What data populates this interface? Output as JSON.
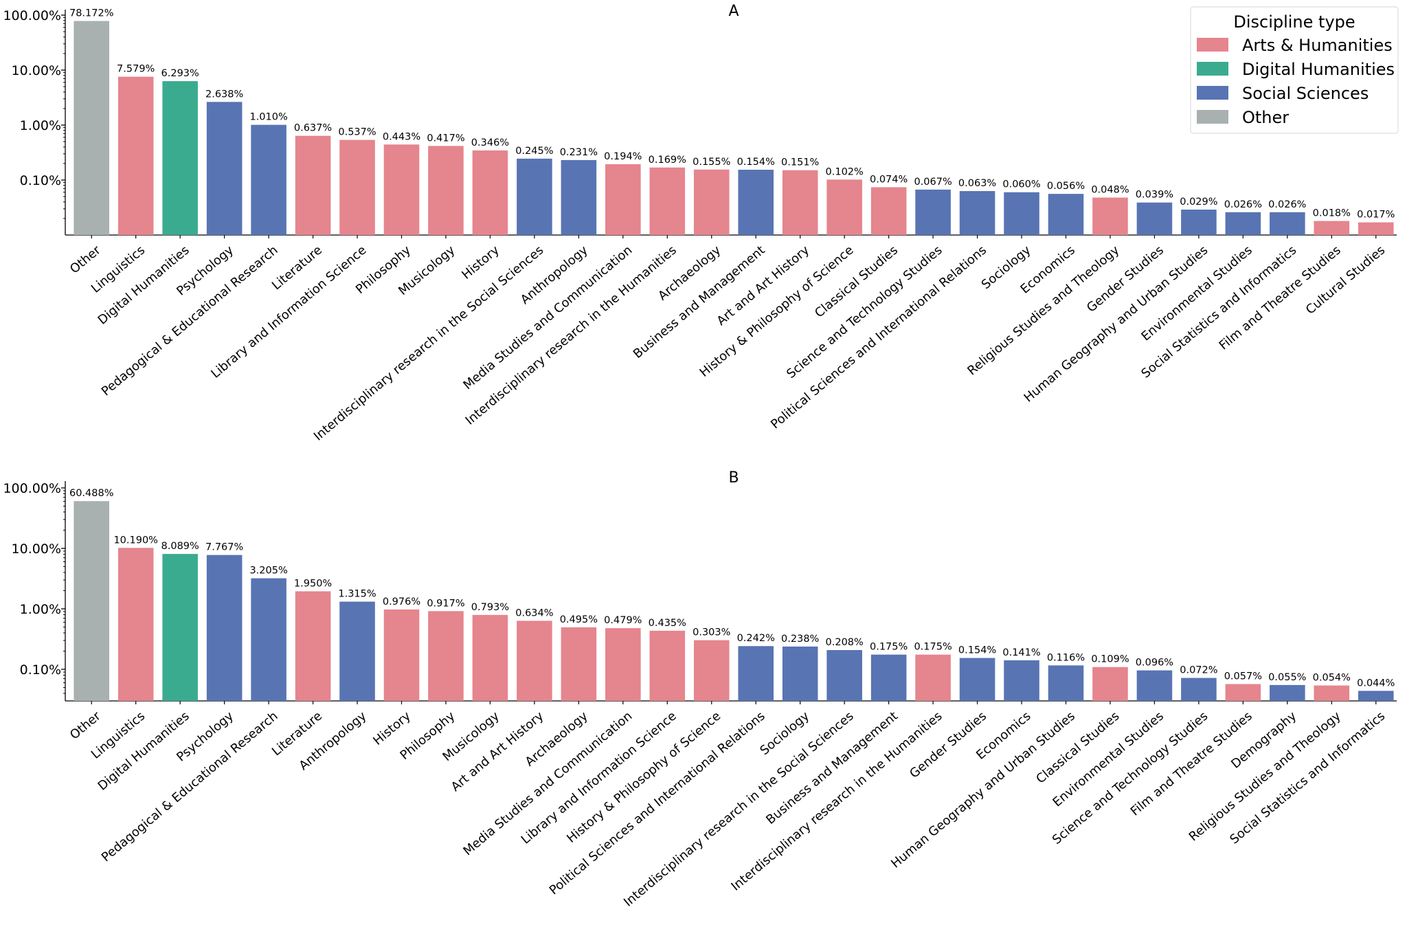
{
  "legend": {
    "title": "Discipline type",
    "placement": "top-right",
    "entries": [
      {
        "label": "Arts & Humanities",
        "color": "#e5858e"
      },
      {
        "label": "Digital Humanities",
        "color": "#3aab8f"
      },
      {
        "label": "Social Sciences",
        "color": "#5874b3"
      },
      {
        "label": "Other",
        "color": "#a9b1b0"
      }
    ]
  },
  "chart_data": [
    {
      "type": "bar",
      "title": "A",
      "yscale": "log",
      "ylim": [
        0.01,
        100
      ],
      "yticks": [
        0.1,
        1,
        10,
        100
      ],
      "ytick_labels": [
        "0.10%",
        "1.00%",
        "10.00%",
        "100.00%"
      ],
      "xlabel": "",
      "ylabel": "",
      "categories": [
        "Other",
        "Linguistics",
        "Digital Humanities",
        "Psychology",
        "Pedagogical & Educational Research",
        "Literature",
        "Library and Information Science",
        "Philosophy",
        "Musicology",
        "History",
        "Interdisciplinary research in the Social Sciences",
        "Anthropology",
        "Media Studies and Communication",
        "Interdisciplinary research in the Humanities",
        "Archaeology",
        "Business and Management",
        "Art and Art History",
        "History & Philosophy of Science",
        "Classical Studies",
        "Science and Technology Studies",
        "Political Sciences and International Relations",
        "Sociology",
        "Economics",
        "Religious Studies and Theology",
        "Gender Studies",
        "Human Geography and Urban Studies",
        "Environmental Studies",
        "Social Statistics and Informatics",
        "Film and Theatre Studies",
        "Cultural Studies"
      ],
      "values": [
        78.172,
        7.579,
        6.293,
        2.638,
        1.01,
        0.637,
        0.537,
        0.443,
        0.417,
        0.346,
        0.245,
        0.231,
        0.194,
        0.169,
        0.155,
        0.154,
        0.151,
        0.102,
        0.074,
        0.067,
        0.063,
        0.06,
        0.056,
        0.048,
        0.039,
        0.029,
        0.026,
        0.026,
        0.018,
        0.017
      ],
      "value_labels": [
        "78.172%",
        "7.579%",
        "6.293%",
        "2.638%",
        "1.010%",
        "0.637%",
        "0.537%",
        "0.443%",
        "0.417%",
        "0.346%",
        "0.245%",
        "0.231%",
        "0.194%",
        "0.169%",
        "0.155%",
        "0.154%",
        "0.151%",
        "0.102%",
        "0.074%",
        "0.067%",
        "0.063%",
        "0.060%",
        "0.056%",
        "0.048%",
        "0.039%",
        "0.029%",
        "0.026%",
        "0.026%",
        "0.018%",
        "0.017%"
      ],
      "discipline_types": [
        "Other",
        "Arts & Humanities",
        "Digital Humanities",
        "Social Sciences",
        "Social Sciences",
        "Arts & Humanities",
        "Arts & Humanities",
        "Arts & Humanities",
        "Arts & Humanities",
        "Arts & Humanities",
        "Social Sciences",
        "Social Sciences",
        "Arts & Humanities",
        "Arts & Humanities",
        "Arts & Humanities",
        "Social Sciences",
        "Arts & Humanities",
        "Arts & Humanities",
        "Arts & Humanities",
        "Social Sciences",
        "Social Sciences",
        "Social Sciences",
        "Social Sciences",
        "Arts & Humanities",
        "Social Sciences",
        "Social Sciences",
        "Social Sciences",
        "Social Sciences",
        "Arts & Humanities",
        "Arts & Humanities"
      ]
    },
    {
      "type": "bar",
      "title": "B",
      "yscale": "log",
      "ylim": [
        0.03,
        100
      ],
      "yticks": [
        0.1,
        1,
        10,
        100
      ],
      "ytick_labels": [
        "0.10%",
        "1.00%",
        "10.00%",
        "100.00%"
      ],
      "xlabel": "",
      "ylabel": "",
      "categories": [
        "Other",
        "Linguistics",
        "Digital Humanities",
        "Psychology",
        "Pedagogical & Educational Research",
        "Literature",
        "Anthropology",
        "History",
        "Philosophy",
        "Musicology",
        "Art and Art History",
        "Archaeology",
        "Media Studies and Communication",
        "Library and Information Science",
        "History & Philosophy of Science",
        "Political Sciences and International Relations",
        "Sociology",
        "Interdisciplinary research in the Social Sciences",
        "Business and Management",
        "Interdisciplinary research in the Humanities",
        "Gender Studies",
        "Economics",
        "Human Geography and Urban Studies",
        "Classical Studies",
        "Environmental Studies",
        "Science and Technology Studies",
        "Film and Theatre Studies",
        "Demography",
        "Religious Studies and Theology",
        "Social Statistics and Informatics"
      ],
      "values": [
        60.488,
        10.19,
        8.089,
        7.767,
        3.205,
        1.95,
        1.315,
        0.976,
        0.917,
        0.793,
        0.634,
        0.495,
        0.479,
        0.435,
        0.303,
        0.242,
        0.238,
        0.208,
        0.175,
        0.175,
        0.154,
        0.141,
        0.116,
        0.109,
        0.096,
        0.072,
        0.057,
        0.055,
        0.054,
        0.044
      ],
      "value_labels": [
        "60.488%",
        "10.190%",
        "8.089%",
        "7.767%",
        "3.205%",
        "1.950%",
        "1.315%",
        "0.976%",
        "0.917%",
        "0.793%",
        "0.634%",
        "0.495%",
        "0.479%",
        "0.435%",
        "0.303%",
        "0.242%",
        "0.238%",
        "0.208%",
        "0.175%",
        "0.175%",
        "0.154%",
        "0.141%",
        "0.116%",
        "0.109%",
        "0.096%",
        "0.072%",
        "0.057%",
        "0.055%",
        "0.054%",
        "0.044%"
      ],
      "discipline_types": [
        "Other",
        "Arts & Humanities",
        "Digital Humanities",
        "Social Sciences",
        "Social Sciences",
        "Arts & Humanities",
        "Social Sciences",
        "Arts & Humanities",
        "Arts & Humanities",
        "Arts & Humanities",
        "Arts & Humanities",
        "Arts & Humanities",
        "Arts & Humanities",
        "Arts & Humanities",
        "Arts & Humanities",
        "Social Sciences",
        "Social Sciences",
        "Social Sciences",
        "Social Sciences",
        "Arts & Humanities",
        "Social Sciences",
        "Social Sciences",
        "Social Sciences",
        "Arts & Humanities",
        "Social Sciences",
        "Social Sciences",
        "Arts & Humanities",
        "Social Sciences",
        "Arts & Humanities",
        "Social Sciences"
      ]
    }
  ]
}
